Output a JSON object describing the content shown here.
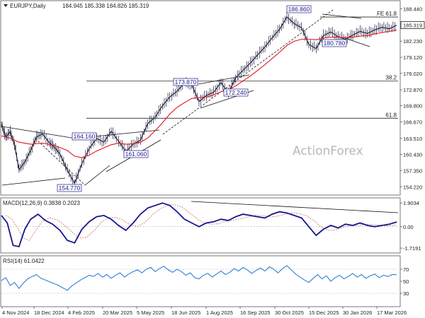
{
  "header": {
    "symbol": "EURJPY,Daily",
    "ohlc": "184.945 185.338 184.826 185.319"
  },
  "watermark": "ActionForex",
  "colors": {
    "price": "#1a1a3a",
    "ema": "#e0141e",
    "trend": "#111111",
    "macd": "#16168c",
    "signal": "#d27a7a",
    "rsi": "#2f7fd6",
    "level": "#2a2a2a",
    "last_price_box": "#ffffff"
  },
  "chart_data": [
    {
      "type": "line",
      "panel": "price",
      "title": "EURJPY,Daily",
      "y_ticks": [
        "188.440",
        "185.319",
        "182.230",
        "179.120",
        "176.020",
        "172.870",
        "169.800",
        "166.670",
        "163.510",
        "160.430",
        "157.350",
        "154.220"
      ],
      "ylim": [
        152.9,
        189.6
      ],
      "last_price": "185.319",
      "x_ticks": [
        "4 Nov 2024",
        "18 Dec 2024",
        "4 Feb 2025",
        "20 Mar 2025",
        "5 May 2025",
        "18 Jun 2025",
        "1 Aug 2025",
        "16 Sep 2025",
        "30 Oct 2025",
        "15 Dec 2025",
        "30 Jan 2026",
        "17 Mar 2026"
      ],
      "series": [
        {
          "x": [
            0,
            3,
            6,
            9,
            12,
            16,
            20,
            24,
            28,
            33,
            36,
            40,
            45,
            50,
            55,
            60,
            65,
            70,
            75,
            80,
            85,
            90,
            95,
            100,
            105,
            110,
            115,
            120,
            125,
            130,
            135,
            140,
            145,
            150,
            155,
            160,
            165,
            170,
            175,
            180,
            185,
            190,
            195,
            200,
            205,
            210,
            215,
            220,
            225,
            230,
            235,
            240,
            245,
            250,
            255,
            260,
            265,
            270
          ],
          "values": [
            166.2,
            163.8,
            164.8,
            162.3,
            157.5,
            159.0,
            161.2,
            163.8,
            164.4,
            162.6,
            161.9,
            160.5,
            157.4,
            154.9,
            158.7,
            161.6,
            163.5,
            162.8,
            164.9,
            163.0,
            161.0,
            162.4,
            163.2,
            166.4,
            167.6,
            169.8,
            171.5,
            172.6,
            174.2,
            173.8,
            170.6,
            171.8,
            172.4,
            174.3,
            172.2,
            175.2,
            176.6,
            178.0,
            179.6,
            181.1,
            182.9,
            184.5,
            186.9,
            185.6,
            184.8,
            181.6,
            180.8,
            183.3,
            184.0,
            183.1,
            182.6,
            183.4,
            184.1,
            183.7,
            184.4,
            184.9,
            184.6,
            185.3
          ]
        },
        {
          "x": [
            0,
            6,
            12,
            20,
            28,
            36,
            45,
            50,
            55,
            60,
            65,
            70,
            75,
            80,
            85,
            90,
            95,
            100,
            105,
            110,
            115,
            120,
            125,
            130,
            135,
            140,
            145,
            150,
            155,
            160,
            165,
            170,
            175,
            180,
            185,
            190,
            195,
            200,
            205,
            210,
            215,
            220,
            225,
            230,
            235,
            240,
            245,
            250,
            255,
            260,
            265,
            270
          ],
          "values": [
            164.0,
            163.6,
            162.8,
            162.4,
            162.6,
            162.2,
            161.2,
            160.1,
            159.8,
            160.3,
            161.1,
            161.7,
            162.3,
            162.6,
            162.4,
            162.5,
            162.8,
            163.6,
            165.0,
            166.5,
            168.2,
            169.5,
            170.4,
            171.2,
            171.4,
            171.5,
            171.9,
            172.5,
            172.9,
            173.6,
            174.6,
            175.5,
            176.6,
            177.7,
            178.9,
            180.1,
            181.4,
            182.2,
            182.6,
            182.6,
            182.5,
            182.8,
            183.0,
            183.0,
            182.9,
            183.0,
            183.2,
            183.3,
            183.6,
            183.9,
            184.1,
            184.4
          ]
        }
      ],
      "annotations": [
        "186.860",
        "180.780",
        "173.870",
        "172.240",
        "164.160",
        "161.060",
        "154.770"
      ],
      "levels": [
        {
          "label": "FE 61.8",
          "value": 186.87
        },
        {
          "label": "38.2",
          "value": 174.55
        },
        {
          "label": "61.8",
          "value": 167.4
        }
      ]
    },
    {
      "type": "line",
      "panel": "macd",
      "title": "MACD(12,26,9) 0.3838 0.2023",
      "y_ticks": [
        "1.9034",
        "0.00",
        "-1.7191"
      ],
      "ylim": [
        -2.0,
        2.2
      ],
      "series": [
        {
          "x": [
            0,
            4,
            8,
            12,
            16,
            20,
            25,
            30,
            35,
            40,
            45,
            50,
            55,
            60,
            65,
            70,
            75,
            80,
            85,
            90,
            95,
            100,
            105,
            110,
            115,
            120,
            125,
            130,
            135,
            140,
            145,
            150,
            155,
            160,
            165,
            170,
            175,
            180,
            185,
            190,
            195,
            200,
            205,
            210,
            215,
            220,
            225,
            230,
            235,
            240,
            245,
            250,
            255,
            260,
            265,
            270
          ],
          "values": [
            0.9,
            0.3,
            -1.5,
            -1.6,
            -0.2,
            0.6,
            1.0,
            0.5,
            0.2,
            -0.3,
            -1.1,
            -1.3,
            -0.2,
            0.4,
            0.8,
            0.9,
            0.6,
            0.1,
            -0.3,
            0.3,
            1.0,
            1.5,
            1.7,
            1.9,
            1.7,
            1.2,
            0.6,
            0.3,
            0.0,
            0.3,
            0.4,
            0.6,
            0.5,
            0.8,
            1.0,
            0.9,
            0.8,
            0.7,
            1.0,
            1.2,
            1.1,
            0.9,
            0.7,
            0.0,
            -0.7,
            -0.2,
            0.1,
            -0.1,
            0.2,
            0.1,
            0.3,
            0.1,
            0.0,
            0.1,
            0.2,
            0.38
          ]
        }
      ]
    },
    {
      "type": "line",
      "panel": "rsi",
      "title": "RSI(14) 61.0422",
      "y_ticks": [
        "70",
        "50",
        "30"
      ],
      "ylim": [
        10,
        90
      ],
      "series": [
        {
          "x": [
            0,
            3,
            6,
            9,
            12,
            15,
            18,
            21,
            24,
            27,
            30,
            33,
            36,
            39,
            42,
            45,
            48,
            51,
            54,
            57,
            60,
            63,
            66,
            69,
            72,
            75,
            78,
            81,
            84,
            87,
            90,
            93,
            96,
            99,
            102,
            105,
            108,
            111,
            114,
            117,
            120,
            123,
            126,
            129,
            132,
            135,
            138,
            141,
            144,
            147,
            150,
            153,
            156,
            159,
            162,
            165,
            168,
            171,
            174,
            177,
            180,
            183,
            186,
            189,
            192,
            195,
            198,
            201,
            204,
            207,
            210,
            213,
            216,
            219,
            222,
            225,
            228,
            231,
            234,
            237,
            240,
            243,
            246,
            249,
            252,
            255,
            258,
            261,
            264,
            267,
            270
          ],
          "values": [
            51,
            56,
            43,
            48,
            38,
            47,
            54,
            58,
            61,
            55,
            52,
            49,
            46,
            43,
            39,
            35,
            42,
            47,
            52,
            56,
            60,
            58,
            63,
            57,
            61,
            55,
            60,
            64,
            57,
            62,
            66,
            69,
            64,
            70,
            73,
            66,
            71,
            75,
            69,
            65,
            70,
            66,
            60,
            64,
            56,
            54,
            60,
            63,
            57,
            62,
            67,
            61,
            65,
            71,
            67,
            73,
            69,
            63,
            68,
            72,
            67,
            74,
            70,
            64,
            71,
            76,
            69,
            62,
            57,
            52,
            48,
            55,
            61,
            54,
            59,
            50,
            56,
            60,
            54,
            58,
            63,
            57,
            61,
            55,
            59,
            62,
            56,
            60,
            58,
            61,
            61
          ]
        }
      ]
    }
  ]
}
